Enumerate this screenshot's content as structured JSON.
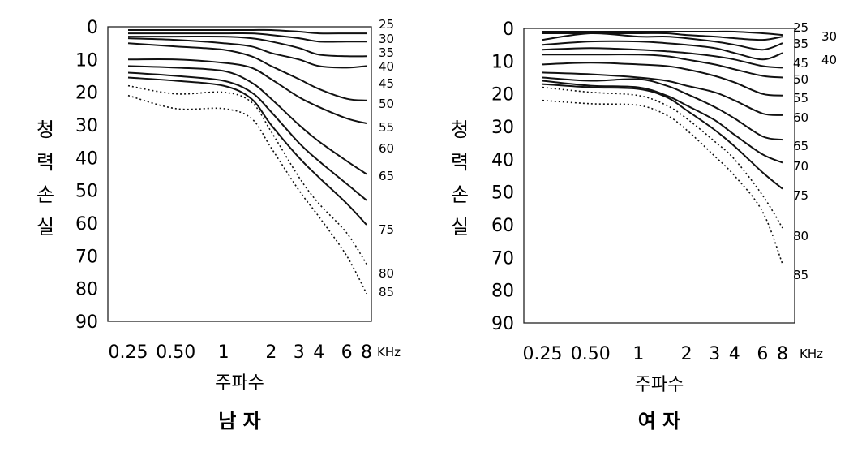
{
  "chart_data": [
    {
      "type": "line",
      "title": "남 자",
      "xlabel": "주파수",
      "ylabel": "청력손실",
      "x_unit": "KHz",
      "x_scale": "log",
      "y_inverted": true,
      "ylim": [
        0,
        90
      ],
      "x_ticks": [
        {
          "value": 0.25,
          "label": "0.25"
        },
        {
          "value": 0.5,
          "label": "0.50"
        },
        {
          "value": 1,
          "label": "1"
        },
        {
          "value": 2,
          "label": "2"
        },
        {
          "value": 3,
          "label": "3"
        },
        {
          "value": 4,
          "label": "4"
        },
        {
          "value": 6,
          "label": "6"
        },
        {
          "value": 8,
          "label": "8"
        }
      ],
      "y_ticks": [
        0,
        10,
        20,
        30,
        40,
        50,
        60,
        70,
        80,
        90
      ],
      "x": [
        0.25,
        0.5,
        1,
        1.5,
        2,
        3,
        4,
        6,
        8
      ],
      "series": [
        {
          "name": "25",
          "dotted": false,
          "values": [
            1,
            1,
            1,
            1,
            1,
            1.5,
            2,
            2,
            2
          ]
        },
        {
          "name": "30",
          "dotted": false,
          "values": [
            2,
            2,
            2,
            2,
            2.5,
            3.5,
            4.5,
            4.5,
            4.5
          ]
        },
        {
          "name": "35",
          "dotted": false,
          "values": [
            3,
            3,
            3,
            3.5,
            4.5,
            6.5,
            8.5,
            9,
            9
          ]
        },
        {
          "name": "40",
          "dotted": false,
          "values": [
            3.5,
            4,
            5,
            6,
            8,
            10,
            12,
            12.5,
            12
          ]
        },
        {
          "name": "45",
          "dotted": false,
          "values": [
            5,
            6,
            7,
            9,
            12,
            16,
            19,
            22,
            22.5
          ]
        },
        {
          "name": "50",
          "dotted": false,
          "values": [
            10,
            10,
            11,
            12.5,
            16,
            21.5,
            24.5,
            28,
            29.5
          ]
        },
        {
          "name": "55",
          "dotted": false,
          "values": [
            12,
            12.5,
            13.5,
            17,
            22,
            30,
            35,
            41,
            45
          ]
        },
        {
          "name": "60",
          "dotted": false,
          "values": [
            14,
            15,
            16.5,
            20,
            26,
            35.5,
            41,
            48,
            53
          ]
        },
        {
          "name": "65",
          "dotted": false,
          "values": [
            15.5,
            16.5,
            18,
            22,
            30,
            40,
            46,
            54,
            60.5
          ]
        },
        {
          "name": "75",
          "dotted": true,
          "values": [
            18,
            20.5,
            20,
            23,
            32,
            46,
            54,
            63,
            72.5
          ]
        },
        {
          "name": "85",
          "dotted": true,
          "values": [
            21,
            25,
            25,
            28,
            37,
            50,
            58,
            70,
            81.5
          ]
        }
      ],
      "age_labels": [
        "25",
        "30",
        "35",
        "40",
        "45",
        "50",
        "55",
        "60",
        "65",
        "75",
        "80",
        "85"
      ]
    },
    {
      "type": "line",
      "title": "여 자",
      "xlabel": "주파수",
      "ylabel": "청력손실",
      "x_unit": "KHz",
      "x_scale": "log",
      "y_inverted": true,
      "ylim": [
        0,
        90
      ],
      "x_ticks": [
        {
          "value": 0.25,
          "label": "0.25"
        },
        {
          "value": 0.5,
          "label": "0.50"
        },
        {
          "value": 1,
          "label": "1"
        },
        {
          "value": 2,
          "label": "2"
        },
        {
          "value": 3,
          "label": "3"
        },
        {
          "value": 4,
          "label": "4"
        },
        {
          "value": 6,
          "label": "6"
        },
        {
          "value": 8,
          "label": "8"
        }
      ],
      "y_ticks": [
        0,
        10,
        20,
        30,
        40,
        50,
        60,
        70,
        80,
        90
      ],
      "x": [
        0.25,
        0.5,
        1,
        1.5,
        2,
        3,
        4,
        6,
        8
      ],
      "series": [
        {
          "name": "25",
          "dotted": false,
          "values": [
            1,
            1,
            1,
            1,
            1,
            1,
            1,
            1.5,
            2
          ]
        },
        {
          "name": "30",
          "dotted": false,
          "values": [
            1.5,
            1.5,
            1.5,
            1.5,
            2,
            2.5,
            3,
            3.5,
            2.5
          ]
        },
        {
          "name": "35",
          "dotted": false,
          "values": [
            3.5,
            1.5,
            2.5,
            2.5,
            3,
            4,
            5,
            6.5,
            4.5
          ]
        },
        {
          "name": "40",
          "dotted": false,
          "values": [
            5,
            4,
            4,
            4.5,
            5,
            6,
            7.5,
            9.5,
            7.5
          ]
        },
        {
          "name": "45",
          "dotted": false,
          "values": [
            6.5,
            6,
            6.5,
            7,
            7.5,
            8.5,
            9.5,
            11.5,
            12
          ]
        },
        {
          "name": "50",
          "dotted": false,
          "values": [
            8,
            8,
            8,
            8.5,
            9.5,
            11,
            12.5,
            14.5,
            15
          ]
        },
        {
          "name": "55",
          "dotted": false,
          "values": [
            11,
            10.5,
            11,
            11.5,
            12.5,
            14.5,
            16.5,
            20,
            20.5
          ]
        },
        {
          "name": "60",
          "dotted": false,
          "values": [
            13.5,
            14,
            15,
            16,
            17.5,
            19.5,
            22,
            26,
            26.5
          ]
        },
        {
          "name": "65",
          "dotted": false,
          "values": [
            15,
            16,
            15.5,
            17.5,
            20,
            24,
            27.5,
            33,
            34
          ]
        },
        {
          "name": "70",
          "dotted": false,
          "values": [
            16,
            17.5,
            18,
            20.5,
            23.5,
            28,
            32.5,
            38.5,
            41
          ]
        },
        {
          "name": "75",
          "dotted": false,
          "values": [
            17,
            18,
            18.5,
            21,
            25,
            31,
            36,
            44,
            49
          ]
        },
        {
          "name": "80",
          "dotted": true,
          "values": [
            18,
            19.5,
            20.5,
            23.5,
            27.5,
            34.5,
            40,
            51,
            61
          ]
        },
        {
          "name": "85",
          "dotted": true,
          "values": [
            22,
            23,
            23.5,
            26.5,
            31,
            39,
            45,
            56,
            72
          ]
        }
      ],
      "age_labels": [
        "25",
        "30",
        "35",
        "40",
        "45",
        "50",
        "55",
        "60",
        "65",
        "70",
        "75",
        "80",
        "85"
      ]
    }
  ]
}
